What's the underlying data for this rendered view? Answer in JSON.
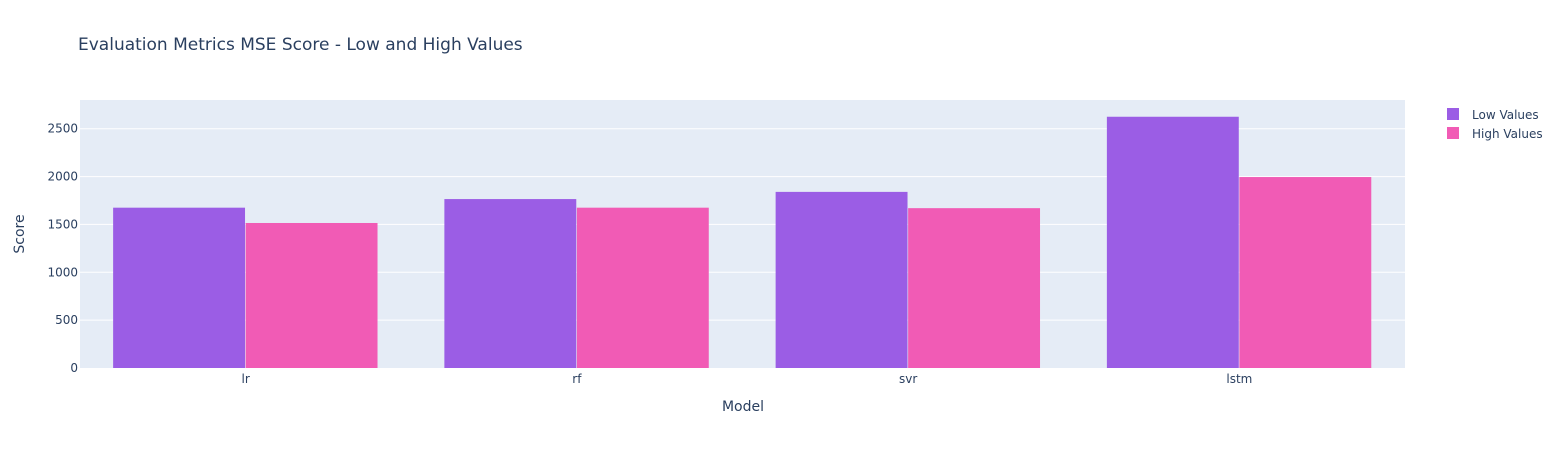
{
  "chart_data": {
    "type": "bar",
    "title": "Evaluation Metrics MSE Score - Low and High Values",
    "xlabel": "Model",
    "ylabel": "Score",
    "categories": [
      "lr",
      "rf",
      "svr",
      "lstm"
    ],
    "series": [
      {
        "name": "Low Values",
        "values": [
          1675,
          1765,
          1840,
          2625
        ],
        "color": "#9b5de5"
      },
      {
        "name": "High Values",
        "values": [
          1515,
          1675,
          1670,
          1995
        ],
        "color": "#f15bb5"
      }
    ],
    "ylim": [
      0,
      2800
    ],
    "yticks": [
      0,
      500,
      1000,
      1500,
      2000,
      2500
    ],
    "ytick_labels": [
      "0",
      "500",
      "1000",
      "1500",
      "2000",
      "2500"
    ],
    "grid": true,
    "legend_position": "top-right",
    "plot_background": "#e5ecf6",
    "gridline_color": "#ffffff",
    "text_color": "#2a3f5f"
  }
}
